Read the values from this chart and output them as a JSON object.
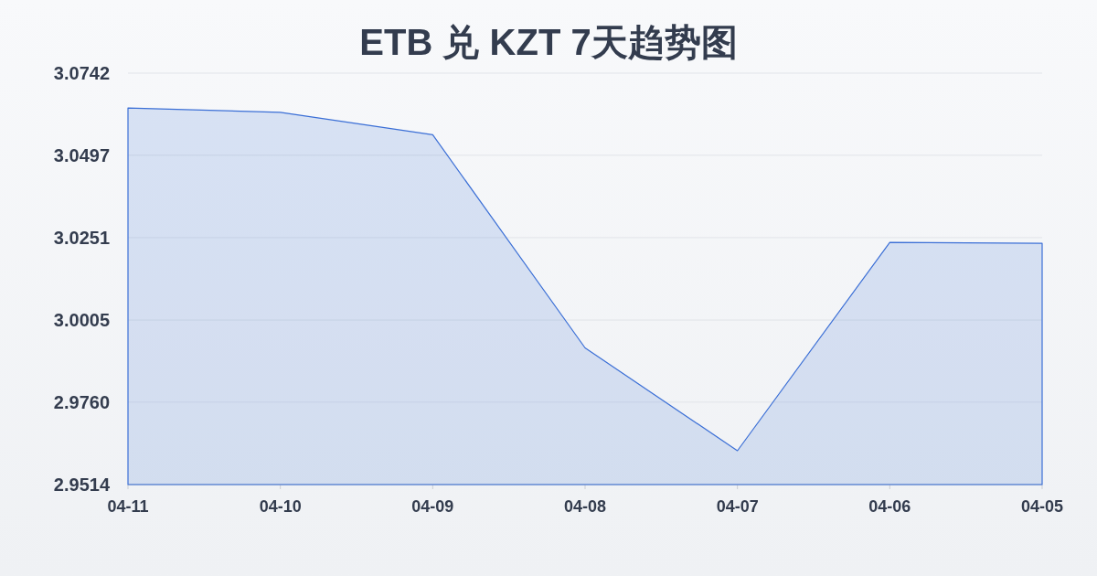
{
  "chart_data": {
    "type": "area",
    "title": "ETB 兑 KZT 7天趋势图",
    "categories": [
      "04-11",
      "04-10",
      "04-09",
      "04-08",
      "04-07",
      "04-06",
      "04-05"
    ],
    "series": [
      {
        "color": "#3b6fd6",
        "values": [
          3.0638,
          3.0625,
          3.0558,
          2.9922,
          2.9615,
          3.0237,
          3.0234
        ]
      }
    ],
    "ylim": [
      2.9514,
      3.0742
    ],
    "yticks": [
      2.9514,
      {
        "value": 2.976,
        "label": "2.9760"
      },
      3.0005,
      3.0251,
      3.0497,
      3.0742
    ],
    "grid": "y"
  }
}
